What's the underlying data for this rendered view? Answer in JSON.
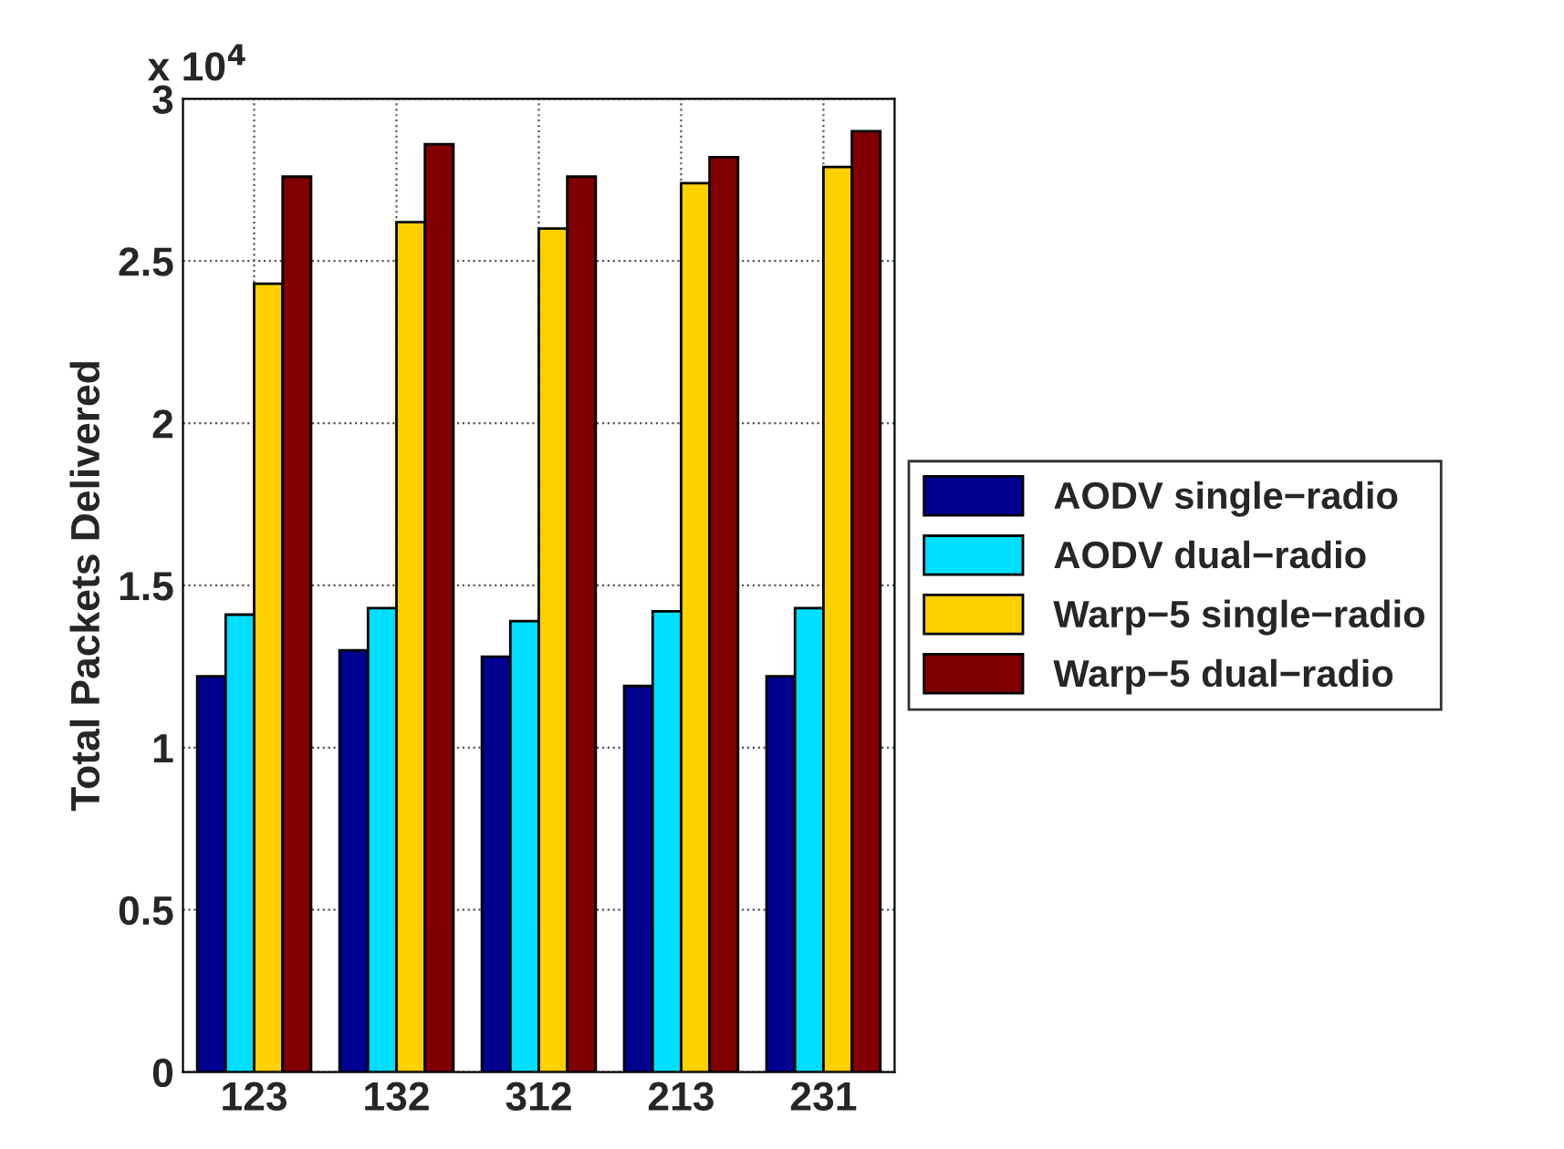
{
  "chart_data": {
    "type": "bar",
    "ylabel": "Total Packets Delivered",
    "categories": [
      "123",
      "132",
      "312",
      "213",
      "231"
    ],
    "series": [
      {
        "name": "AODV single−radio",
        "color": "#00008f",
        "values": [
          1.22,
          1.3,
          1.28,
          1.19,
          1.22
        ]
      },
      {
        "name": "AODV dual−radio",
        "color": "#00dfff",
        "values": [
          1.41,
          1.43,
          1.39,
          1.42,
          1.43
        ]
      },
      {
        "name": "Warp−5 single−radio",
        "color": "#ffd000",
        "values": [
          2.43,
          2.62,
          2.6,
          2.74,
          2.79
        ]
      },
      {
        "name": "Warp−5 dual−radio",
        "color": "#800000",
        "values": [
          2.76,
          2.86,
          2.76,
          2.82,
          2.9
        ]
      }
    ],
    "ylim": [
      0,
      3
    ],
    "yticks": [
      0,
      0.5,
      1,
      1.5,
      2,
      2.5,
      3
    ],
    "annotations": [
      "x 10$^{4}$"
    ],
    "grid": true,
    "legend": "right"
  }
}
